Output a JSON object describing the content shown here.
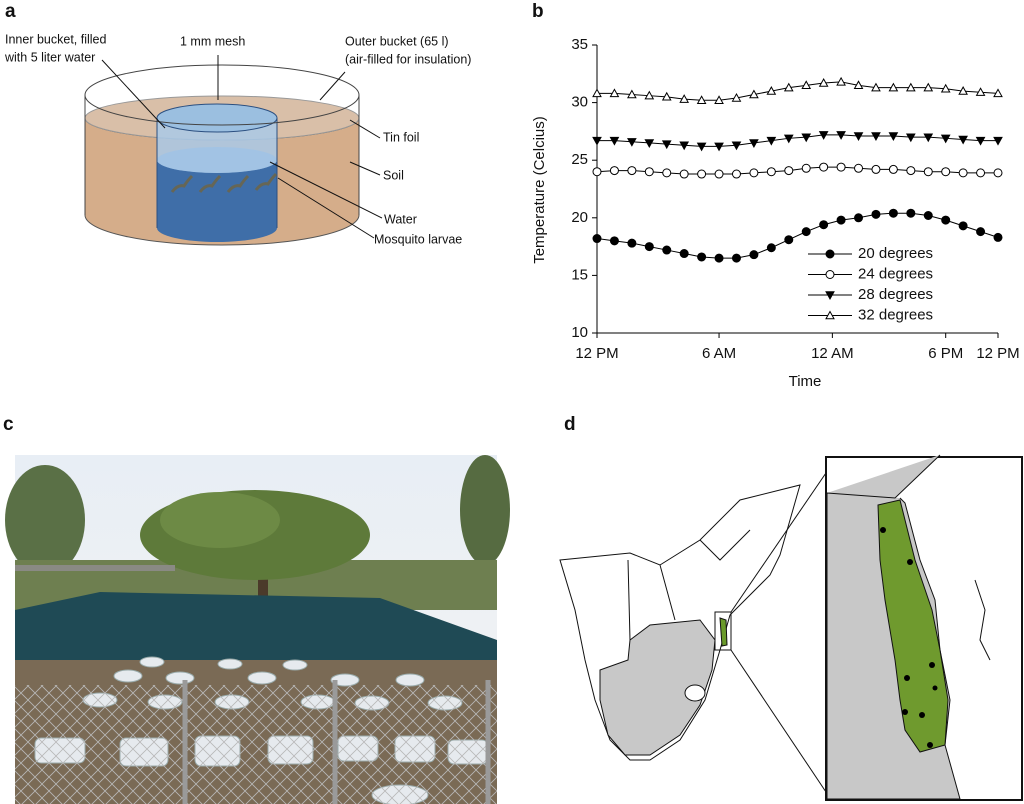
{
  "panel_labels": [
    "a",
    "b",
    "c",
    "d"
  ],
  "diagram": {
    "inner_bucket": [
      "Inner bucket, filled",
      "with 5 liter water"
    ],
    "mesh": "1 mm mesh",
    "outer_bucket": [
      "Outer bucket (65 l)",
      "(air-filled for insulation)"
    ],
    "tin_foil": "Tin foil",
    "soil": "Soil",
    "water": "Water",
    "larvae": "Mosquito larvae"
  },
  "chart_data": {
    "type": "line",
    "xlabel": "Time",
    "ylabel": "Temperature (Celcius)",
    "x": [
      0,
      2,
      4,
      6,
      8,
      10,
      12,
      14,
      16,
      18,
      20,
      22,
      24,
      26,
      28,
      30,
      32,
      34,
      36,
      38,
      40,
      42,
      44,
      46
    ],
    "xlim": [
      0,
      46
    ],
    "xticks": [
      {
        "value": 0,
        "label": "12 PM"
      },
      {
        "value": 14,
        "label": "6 AM"
      },
      {
        "value": 27,
        "label": "12 AM"
      },
      {
        "value": 40,
        "label": "6 PM"
      },
      {
        "value": 46,
        "label": "12 PM"
      }
    ],
    "ylim": [
      10,
      35
    ],
    "yticks": [
      10,
      15,
      20,
      25,
      30,
      35
    ],
    "legend": "lower right",
    "series": [
      {
        "name": "20 degrees",
        "color": "#000000",
        "marker": "circle-filled",
        "values": [
          18.2,
          18.0,
          17.8,
          17.5,
          17.2,
          16.9,
          16.6,
          16.5,
          16.5,
          16.8,
          17.4,
          18.1,
          18.8,
          19.4,
          19.8,
          20.0,
          20.3,
          20.4,
          20.4,
          20.2,
          19.8,
          19.3,
          18.8,
          18.3
        ]
      },
      {
        "name": "24 degrees",
        "color": "#000000",
        "marker": "circle-open",
        "values": [
          24.0,
          24.1,
          24.1,
          24.0,
          23.9,
          23.8,
          23.8,
          23.8,
          23.8,
          23.9,
          24.0,
          24.1,
          24.3,
          24.4,
          24.4,
          24.3,
          24.2,
          24.2,
          24.1,
          24.0,
          24.0,
          23.9,
          23.9,
          23.9
        ]
      },
      {
        "name": "28 degrees",
        "color": "#000000",
        "marker": "triangle-down-filled",
        "values": [
          26.7,
          26.7,
          26.6,
          26.5,
          26.4,
          26.3,
          26.2,
          26.2,
          26.3,
          26.5,
          26.7,
          26.9,
          27.0,
          27.2,
          27.2,
          27.1,
          27.1,
          27.1,
          27.0,
          27.0,
          26.9,
          26.8,
          26.7,
          26.7
        ]
      },
      {
        "name": "32 degrees",
        "color": "#000000",
        "marker": "triangle-up-open",
        "values": [
          30.8,
          30.8,
          30.7,
          30.6,
          30.5,
          30.3,
          30.2,
          30.2,
          30.4,
          30.7,
          31.0,
          31.3,
          31.5,
          31.7,
          31.8,
          31.5,
          31.3,
          31.3,
          31.3,
          31.3,
          31.2,
          31.0,
          30.9,
          30.8
        ]
      }
    ]
  }
}
